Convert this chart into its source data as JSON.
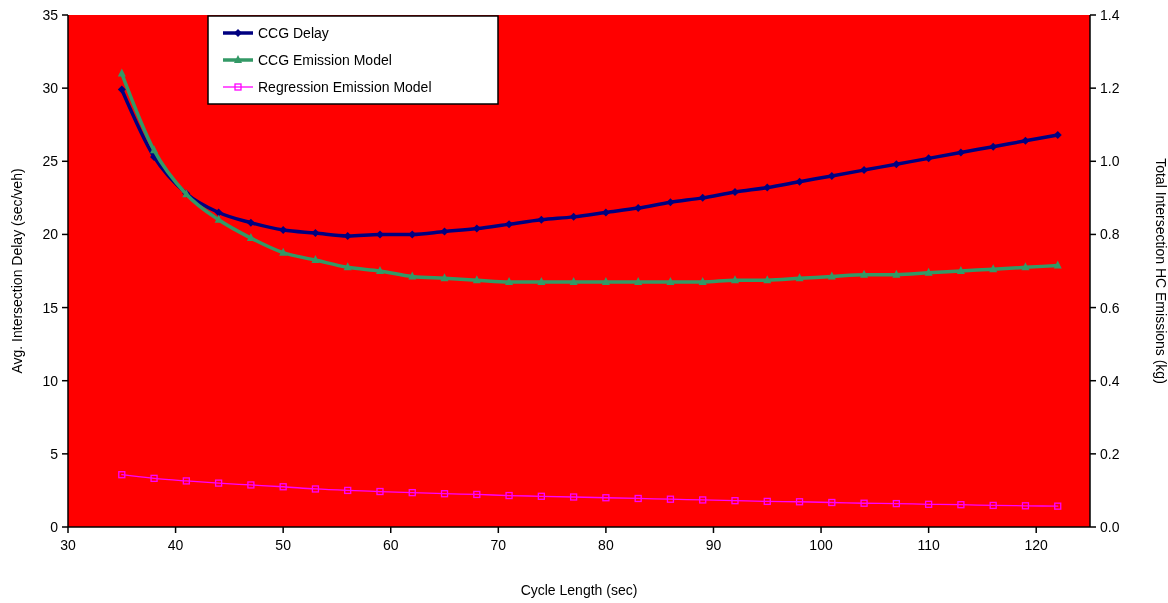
{
  "chart_data": {
    "type": "line",
    "xlabel": "Cycle Length (sec)",
    "ylabel": "Avg. Intersection Delay (sec/veh)",
    "y2label": "Total Intersection HC Emissions (kg)",
    "x": [
      35,
      38,
      41,
      44,
      47,
      50,
      53,
      56,
      59,
      62,
      65,
      68,
      71,
      74,
      77,
      80,
      83,
      86,
      89,
      92,
      95,
      98,
      101,
      104,
      107,
      110,
      113,
      116,
      119,
      122
    ],
    "xlim": [
      30,
      125
    ],
    "xticks": [
      30,
      40,
      50,
      60,
      70,
      80,
      90,
      100,
      110,
      120
    ],
    "ylim": [
      0,
      35
    ],
    "yticks": [
      0,
      5,
      10,
      15,
      20,
      25,
      30,
      35
    ],
    "y2lim": [
      0,
      1.4
    ],
    "y2ticks": [
      {
        "value": 0,
        "label": "0.0"
      },
      {
        "value": 0.2,
        "label": "0.2"
      },
      {
        "value": 0.4,
        "label": "0.4"
      },
      {
        "value": 0.6,
        "label": "0.6"
      },
      {
        "value": 0.8,
        "label": "0.8"
      },
      {
        "value": 1,
        "label": "1.0"
      },
      {
        "value": 1.2,
        "label": "1.2"
      },
      {
        "value": 1.4,
        "label": "1.4"
      }
    ],
    "legend": "top left",
    "grid": false,
    "series": [
      {
        "name": "CCG Delay",
        "color": "#000080",
        "marker": "diamond",
        "values": [
          29.9,
          25.3,
          22.8,
          21.5,
          20.8,
          20.3,
          20.1,
          19.9,
          20.0,
          20.0,
          20.2,
          20.4,
          20.7,
          21.0,
          21.2,
          21.5,
          21.8,
          22.2,
          22.5,
          22.9,
          23.2,
          23.6,
          24.0,
          24.4,
          24.8,
          25.2,
          25.6,
          26.0,
          26.4,
          26.8
        ]
      },
      {
        "name": "CCG Emission Model",
        "color": "#339966",
        "marker": "triangle",
        "axis": "y2",
        "values": [
          1.24,
          1.03,
          0.91,
          0.84,
          0.79,
          0.75,
          0.73,
          0.71,
          0.7,
          0.685,
          0.68,
          0.675,
          0.67,
          0.67,
          0.67,
          0.67,
          0.67,
          0.67,
          0.67,
          0.675,
          0.675,
          0.68,
          0.685,
          0.69,
          0.69,
          0.695,
          0.7,
          0.705,
          0.71,
          0.715
        ]
      },
      {
        "name": "Regression Emission Model",
        "color": "#ff00ff",
        "marker": "square",
        "axis": "y2",
        "values": [
          0.143,
          0.133,
          0.126,
          0.12,
          0.115,
          0.11,
          0.104,
          0.1,
          0.097,
          0.094,
          0.091,
          0.089,
          0.086,
          0.084,
          0.082,
          0.08,
          0.078,
          0.076,
          0.074,
          0.072,
          0.07,
          0.069,
          0.067,
          0.065,
          0.064,
          0.062,
          0.061,
          0.059,
          0.058,
          0.057
        ]
      }
    ]
  }
}
